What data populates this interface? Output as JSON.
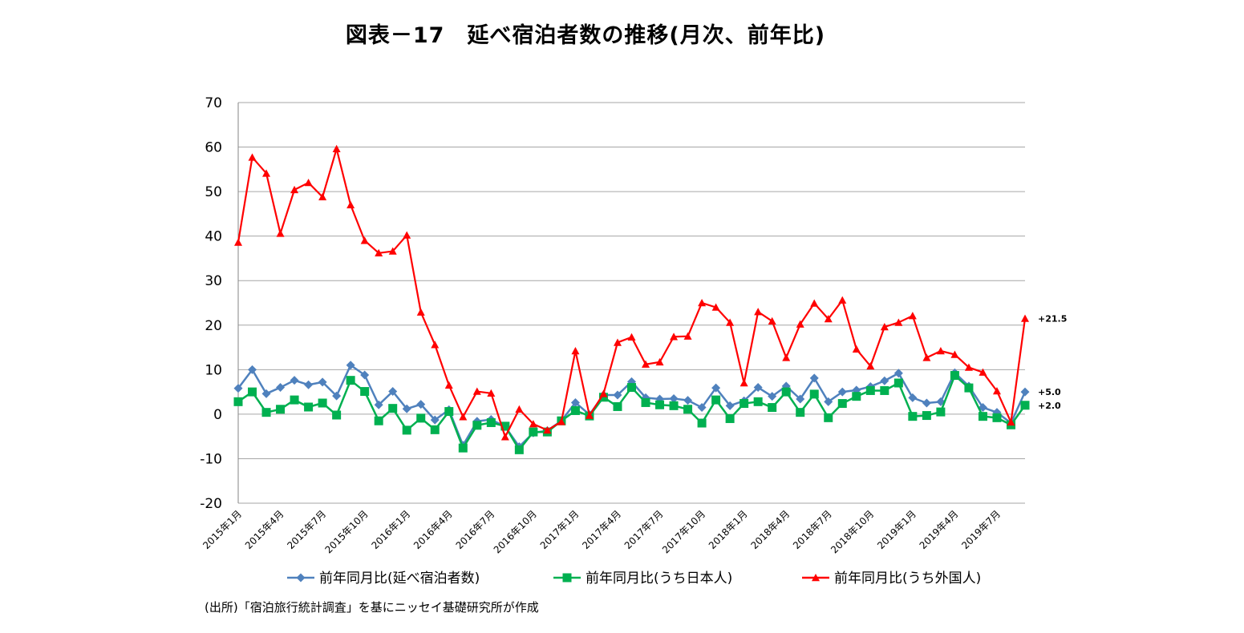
{
  "chart_data": {
    "type": "line",
    "title": "図表－17　延べ宿泊者数の推移(月次、前年比)",
    "source": "(出所)「宿泊旅行統計調査」を基にニッセイ基礎研究所が作成",
    "ylim": [
      -20,
      70
    ],
    "yticks": [
      "70",
      "60",
      "50",
      "40",
      "30",
      "20",
      "10",
      "0",
      "-10",
      "-20"
    ],
    "grid": true,
    "legend_position": "bottom",
    "categories": [
      "2015年1月",
      "2015年2月",
      "2015年3月",
      "2015年4月",
      "2015年5月",
      "2015年6月",
      "2015年7月",
      "2015年8月",
      "2015年9月",
      "2015年10月",
      "2015年11月",
      "2015年12月",
      "2016年1月",
      "2016年2月",
      "2016年3月",
      "2016年4月",
      "2016年5月",
      "2016年6月",
      "2016年7月",
      "2016年8月",
      "2016年9月",
      "2016年10月",
      "2016年11月",
      "2016年12月",
      "2017年1月",
      "2017年2月",
      "2017年3月",
      "2017年4月",
      "2017年5月",
      "2017年6月",
      "2017年7月",
      "2017年8月",
      "2017年9月",
      "2017年10月",
      "2017年11月",
      "2017年12月",
      "2018年1月",
      "2018年2月",
      "2018年3月",
      "2018年4月",
      "2018年5月",
      "2018年6月",
      "2018年7月",
      "2018年8月",
      "2018年9月",
      "2018年10月",
      "2018年11月",
      "2018年12月",
      "2019年1月",
      "2019年2月",
      "2019年3月",
      "2019年4月",
      "2019年5月",
      "2019年6月",
      "2019年7月",
      "2019年8月",
      "2019年9月"
    ],
    "xtick_labels": [
      {
        "index": 0,
        "label": "2015年1月"
      },
      {
        "index": 3,
        "label": "2015年4月"
      },
      {
        "index": 6,
        "label": "2015年7月"
      },
      {
        "index": 9,
        "label": "2015年10月"
      },
      {
        "index": 12,
        "label": "2016年1月"
      },
      {
        "index": 15,
        "label": "2016年4月"
      },
      {
        "index": 18,
        "label": "2016年7月"
      },
      {
        "index": 21,
        "label": "2016年10月"
      },
      {
        "index": 24,
        "label": "2017年1月"
      },
      {
        "index": 27,
        "label": "2017年4月"
      },
      {
        "index": 30,
        "label": "2017年7月"
      },
      {
        "index": 33,
        "label": "2017年10月"
      },
      {
        "index": 36,
        "label": "2018年1月"
      },
      {
        "index": 39,
        "label": "2018年4月"
      },
      {
        "index": 42,
        "label": "2018年7月"
      },
      {
        "index": 45,
        "label": "2018年10月"
      },
      {
        "index": 48,
        "label": "2019年1月"
      },
      {
        "index": 51,
        "label": "2019年4月"
      },
      {
        "index": 54,
        "label": "2019年7月"
      }
    ],
    "series": [
      {
        "name": "前年同月比(延べ宿泊者数)",
        "color": "#4F81BD",
        "marker": "diamond",
        "end_label": "+5.0",
        "values": [
          5.8,
          10.0,
          4.6,
          6.0,
          7.6,
          6.6,
          7.2,
          4.1,
          11.0,
          8.8,
          2.1,
          5.1,
          1.2,
          2.2,
          -1.3,
          1.0,
          -7.0,
          -1.6,
          -1.2,
          -2.8,
          -7.3,
          -4.2,
          -3.7,
          -1.5,
          2.6,
          -0.1,
          4.3,
          4.3,
          7.3,
          3.7,
          3.4,
          3.5,
          3.1,
          1.5,
          5.9,
          1.9,
          3.0,
          6.0,
          4.0,
          6.3,
          3.4,
          8.1,
          2.8,
          5.0,
          5.4,
          6.2,
          7.5,
          9.2,
          3.7,
          2.5,
          2.8,
          9.3,
          6.3,
          1.5,
          0.4,
          -2.0,
          5.0
        ]
      },
      {
        "name": "前年同月比(うち日本人)",
        "color": "#00B050",
        "marker": "square",
        "end_label": "+2.0",
        "values": [
          2.8,
          5.0,
          0.4,
          1.1,
          3.2,
          1.6,
          2.5,
          -0.2,
          7.6,
          5.1,
          -1.5,
          1.3,
          -3.6,
          -0.9,
          -3.5,
          0.6,
          -7.6,
          -2.5,
          -1.9,
          -2.7,
          -8.0,
          -4.0,
          -4.0,
          -1.5,
          0.8,
          -0.4,
          3.8,
          1.7,
          6.0,
          2.6,
          2.1,
          1.9,
          1.1,
          -2.0,
          3.2,
          -1.0,
          2.4,
          2.8,
          1.5,
          5.0,
          0.4,
          4.5,
          -0.8,
          2.4,
          4.0,
          5.3,
          5.3,
          7.0,
          -0.5,
          -0.3,
          0.5,
          8.7,
          5.9,
          -0.5,
          -0.8,
          -2.4,
          2.0
        ]
      },
      {
        "name": "前年同月比(うち外国人)",
        "color": "#FF0000",
        "marker": "triangle",
        "end_label": "+21.5",
        "values": [
          38.6,
          57.7,
          54.1,
          40.6,
          50.4,
          52.0,
          48.8,
          59.6,
          47.0,
          39.0,
          36.2,
          36.6,
          40.2,
          22.9,
          15.6,
          6.5,
          -0.6,
          5.1,
          4.7,
          -5.1,
          1.1,
          -2.2,
          -3.6,
          -1.7,
          14.2,
          -0.3,
          4.6,
          16.1,
          17.3,
          11.2,
          11.7,
          17.4,
          17.5,
          25.0,
          24.0,
          20.6,
          7.0,
          23.0,
          20.9,
          12.7,
          20.2,
          24.9,
          21.4,
          25.6,
          14.6,
          10.8,
          19.6,
          20.6,
          22.1,
          12.7,
          14.2,
          13.4,
          10.5,
          9.4,
          5.2,
          -1.8,
          21.5
        ]
      }
    ]
  }
}
